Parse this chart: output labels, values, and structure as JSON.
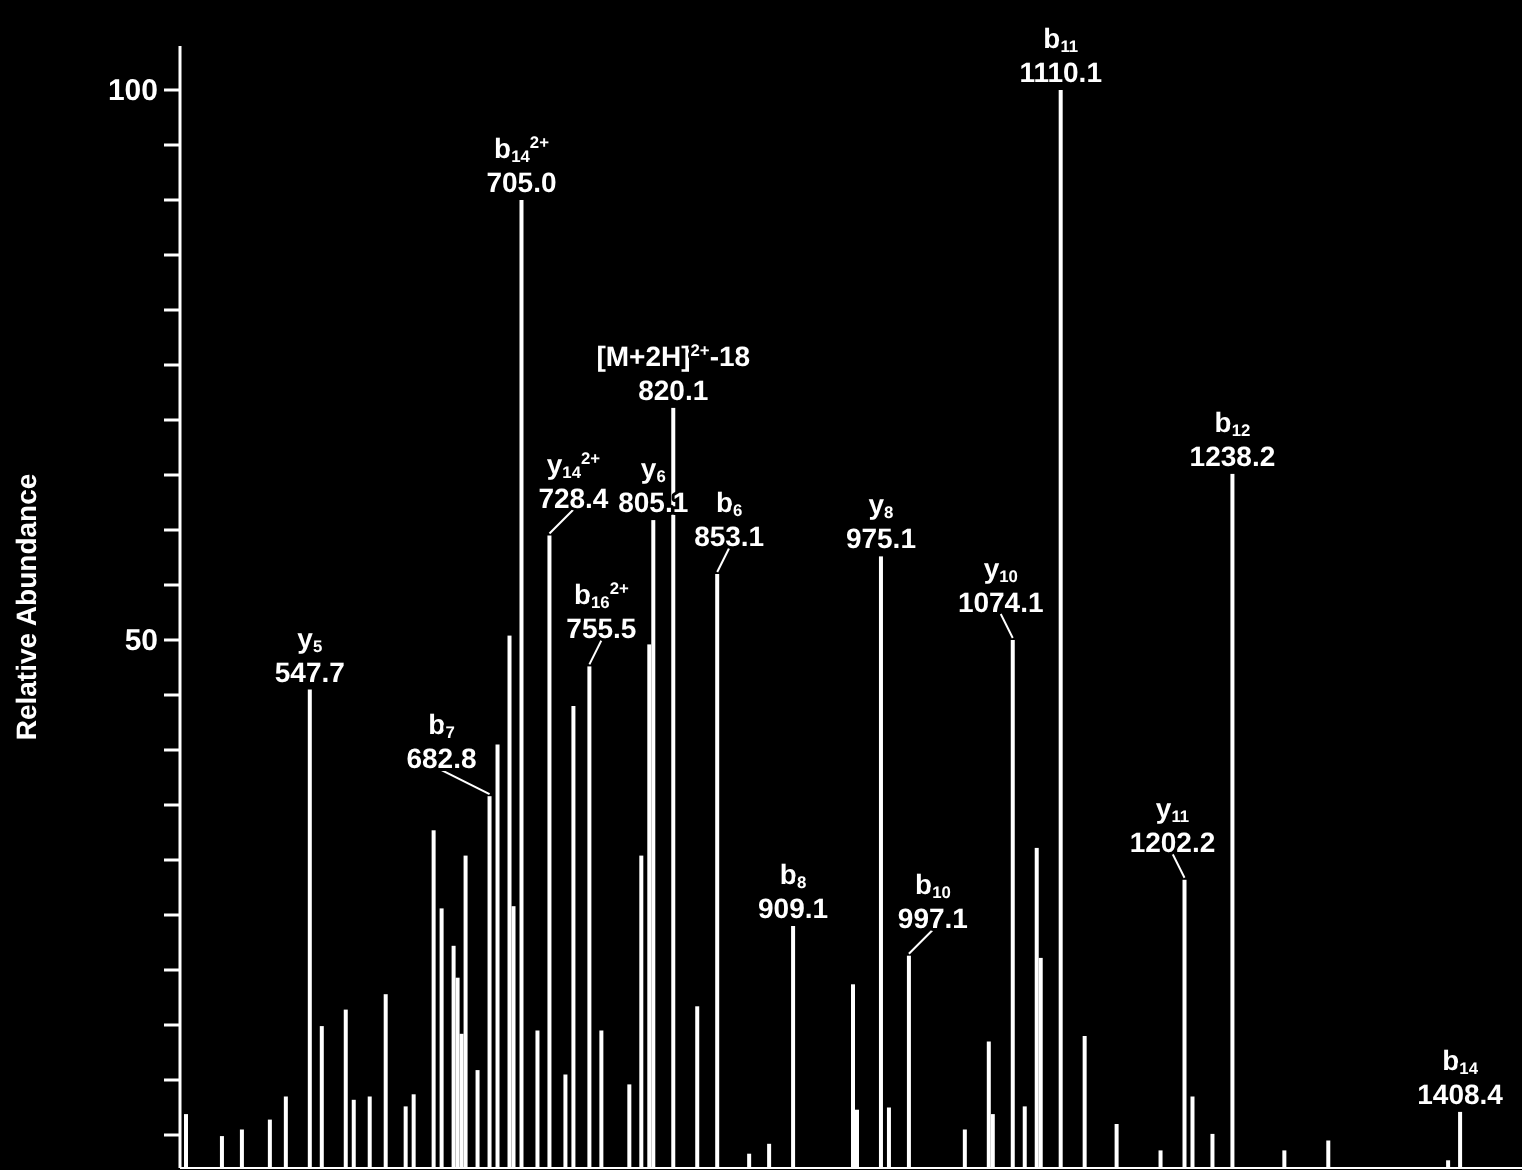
{
  "chart_data": {
    "type": "bar",
    "ylabel": "Relative Abundance",
    "color": "#ffffff",
    "categories": [
      null,
      null,
      null,
      null,
      null,
      null,
      null,
      null,
      null,
      null,
      null,
      null,
      null,
      null,
      null,
      null,
      null,
      null,
      null,
      null,
      null,
      null,
      null,
      null,
      null,
      null,
      null,
      null,
      null,
      null,
      null,
      null,
      null,
      null,
      null,
      null,
      null,
      null,
      null,
      null,
      null,
      null,
      null,
      null,
      null,
      null,
      null,
      null,
      null,
      null,
      null,
      null,
      null,
      null,
      null,
      null,
      null,
      null,
      null,
      null,
      null,
      null,
      null,
      null,
      null,
      null,
      null,
      null,
      null,
      null,
      null,
      null,
      null,
      null,
      null,
      null,
      null,
      null,
      null,
      null,
      null,
      null,
      null,
      null,
      null,
      null,
      null,
      null,
      null,
      null,
      null,
      null,
      null,
      null,
      null,
      null,
      null,
      null,
      null,
      null,
      null,
      null,
      null,
      null,
      null,
      null,
      null,
      null,
      null,
      null,
      null,
      null,
      null,
      null,
      null,
      null,
      null,
      null,
      null,
      null,
      null,
      null,
      null,
      null,
      null,
      null,
      null,
      null,
      null,
      null,
      null,
      null,
      null,
      null,
      null,
      null,
      null,
      null,
      null,
      null,
      null,
      null,
      null,
      null,
      null,
      null,
      null,
      null,
      null,
      null,
      null,
      null,
      null,
      null,
      null,
      null,
      null,
      null,
      null,
      null,
      null,
      null,
      null,
      null,
      null,
      null,
      null,
      null,
      null,
      null,
      null,
      null,
      null,
      null,
      null,
      null,
      null,
      null,
      null,
      null,
      null,
      null,
      null,
      null,
      null,
      null,
      null,
      null,
      null,
      null,
      null,
      null,
      null,
      null,
      null,
      null,
      null,
      null,
      null,
      null,
      null,
      null,
      null,
      null,
      null,
      null,
      null,
      null,
      null,
      null,
      null,
      null,
      null,
      null,
      null,
      null,
      null,
      null,
      null,
      null,
      null,
      null,
      null,
      null,
      null,
      null,
      null,
      null,
      null,
      null,
      null,
      null,
      null,
      null,
      null,
      null,
      null,
      null,
      null,
      null,
      null,
      null,
      null,
      null,
      null,
      null,
      null,
      null,
      null,
      null,
      null,
      null,
      null,
      null,
      null,
      null,
      null,
      null,
      null,
      null,
      null,
      null,
      null,
      null,
      null,
      null,
      null,
      null,
      null,
      null,
      null,
      null,
      null,
      null,
      null,
      null,
      null,
      null,
      null,
      null,
      null,
      null,
      null,
      null,
      null,
      null,
      null,
      null,
      null,
      null,
      null,
      null,
      null,
      null,
      null,
      null,
      null,
      null,
      null,
      null,
      null,
      null,
      null,
      null,
      null,
      null,
      null,
      null,
      null,
      null,
      null,
      null,
      null,
      null,
      null,
      null,
      null,
      null,
      null,
      null,
      null,
      null,
      null,
      null,
      null,
      null,
      null,
      null,
      null,
      null,
      null,
      null,
      null,
      null,
      null,
      null
    ],
    "values": [
      null,
      6.9,
      null,
      null,
      null,
      null,
      null,
      null,
      null,
      null,
      4.9,
      null,
      null,
      null,
      null,
      5.5,
      null,
      null,
      null,
      null,
      null,
      null,
      6.4,
      null,
      null,
      null,
      8.5,
      null,
      null,
      null,
      null,
      null,
      45.5,
      null,
      null,
      14.9,
      null,
      null,
      null,
      null,
      null,
      16.4,
      null,
      8.2,
      null,
      null,
      null,
      8.5,
      null,
      null,
      null,
      17.8,
      null,
      null,
      null,
      null,
      7.6,
      null,
      8.7,
      null,
      null,
      null,
      null,
      32.7,
      null,
      25.6,
      null,
      null,
      22.2,
      19.3,
      14.2,
      30.4,
      null,
      null,
      10.9,
      null,
      null,
      35.8,
      null,
      40.5,
      null,
      null,
      50.4,
      25.8,
      null,
      90,
      null,
      null,
      null,
      14.5,
      null,
      null,
      59.5,
      null,
      null,
      null,
      10.5,
      null,
      44,
      null,
      null,
      null,
      47.6,
      null,
      null,
      14.5,
      null,
      null,
      null,
      null,
      null,
      null,
      9.6,
      null,
      null,
      30.4,
      null,
      49.6,
      60.9,
      null,
      null,
      null,
      null,
      71.1,
      null,
      null,
      null,
      null,
      null,
      16.7,
      null,
      null,
      null,
      null,
      56,
      null,
      null,
      null,
      null,
      null,
      null,
      null,
      3.3,
      null,
      null,
      null,
      null,
      4.2,
      null,
      null,
      null,
      null,
      null,
      24,
      null,
      null,
      null,
      null,
      null,
      null,
      null,
      null,
      null,
      null,
      null,
      null,
      null,
      null,
      18.7,
      7.3,
      null,
      null,
      null,
      null,
      null,
      57.6,
      null,
      7.5,
      null,
      null,
      null,
      null,
      21.3,
      null,
      null,
      null,
      null,
      null,
      null,
      null,
      null,
      null,
      null,
      null,
      null,
      null,
      5.5,
      null,
      null,
      null,
      null,
      null,
      13.5,
      6.9,
      null,
      null,
      null,
      null,
      50,
      null,
      null,
      7.6,
      null,
      null,
      31.1,
      21.1,
      null,
      null,
      null,
      null,
      100,
      null,
      null,
      null,
      null,
      null,
      14,
      null,
      null,
      null,
      null,
      null,
      null,
      null,
      6,
      null,
      null,
      null,
      null,
      null,
      null,
      null,
      null,
      null,
      null,
      3.6,
      null,
      null,
      null,
      null,
      null,
      28.2,
      null,
      8.5,
      null,
      null,
      null,
      null,
      5.1,
      null,
      null,
      null,
      null,
      65.1,
      null,
      null,
      null,
      null,
      null,
      null,
      null,
      null,
      null,
      null,
      null,
      null,
      3.6,
      null,
      null,
      null,
      null,
      null,
      null,
      null,
      null,
      null,
      null,
      4.5,
      null,
      null,
      null,
      null,
      null,
      null,
      null,
      null,
      null,
      null,
      null,
      null,
      null,
      null,
      null,
      null,
      null,
      null,
      null,
      null,
      null,
      null,
      null,
      null,
      null,
      null,
      null,
      null,
      null,
      2.7,
      null,
      null,
      7.1,
      null,
      null,
      null,
      null,
      null,
      null,
      null,
      null,
      null,
      null,
      null,
      null,
      null,
      null,
      null
    ],
    "value_labels": [
      null,
      null,
      null,
      null,
      null,
      null,
      null,
      null,
      null,
      null,
      null,
      null,
      null,
      null,
      null,
      null,
      null,
      null,
      null,
      null,
      null,
      null,
      null,
      null,
      null,
      null,
      null,
      null,
      null,
      null,
      null,
      null,
      "y$_{5}$\n547.7",
      null,
      null,
      null,
      null,
      null,
      null,
      null,
      null,
      null,
      null,
      null,
      null,
      null,
      null,
      null,
      null,
      null,
      null,
      null,
      null,
      null,
      null,
      null,
      null,
      null,
      null,
      null,
      null,
      null,
      null,
      null,
      null,
      null,
      null,
      null,
      null,
      null,
      null,
      null,
      null,
      null,
      null,
      null,
      null,
      "b$_{7}$\n682.8",
      null,
      null,
      null,
      null,
      null,
      null,
      null,
      "b$_{14}$$^{2+}$\n705.0",
      null,
      null,
      null,
      null,
      null,
      null,
      "y$_{14}$$^{2+}$\n728.4",
      null,
      null,
      null,
      null,
      null,
      null,
      null,
      null,
      null,
      "b$_{16}$$^{2+}$\n755.5",
      null,
      null,
      null,
      null,
      null,
      null,
      null,
      null,
      null,
      null,
      null,
      null,
      null,
      null,
      null,
      "y$_{6}$\n805.1",
      null,
      null,
      null,
      null,
      "[M+2H]$^{2+}$-18\n820.1",
      null,
      null,
      null,
      null,
      null,
      null,
      null,
      null,
      null,
      null,
      "b$_{6}$\n853.1",
      null,
      null,
      null,
      null,
      null,
      null,
      null,
      null,
      null,
      null,
      null,
      null,
      null,
      null,
      null,
      null,
      null,
      null,
      "b$_{8}$\n909.1",
      null,
      null,
      null,
      null,
      null,
      null,
      null,
      null,
      null,
      null,
      null,
      null,
      null,
      null,
      null,
      null,
      null,
      null,
      null,
      null,
      null,
      "y$_{8}$\n975.1",
      null,
      null,
      null,
      null,
      null,
      null,
      "b$_{10}$\n997.1",
      null,
      null,
      null,
      null,
      null,
      null,
      null,
      null,
      null,
      null,
      null,
      null,
      null,
      null,
      null,
      null,
      null,
      null,
      null,
      null,
      null,
      null,
      null,
      null,
      null,
      "y$_{10}$\n1074.1",
      null,
      null,
      null,
      null,
      null,
      null,
      null,
      null,
      null,
      null,
      null,
      "b$_{11}$\n1110.1",
      null,
      null,
      null,
      null,
      null,
      null,
      null,
      null,
      null,
      null,
      null,
      null,
      null,
      null,
      null,
      null,
      null,
      null,
      null,
      null,
      null,
      null,
      null,
      null,
      null,
      null,
      null,
      null,
      null,
      null,
      "y$_{11}$\n1202.2",
      null,
      null,
      null,
      null,
      null,
      null,
      null,
      null,
      null,
      null,
      null,
      "b$_{12}$\n1238.2",
      null,
      null,
      null,
      null,
      null,
      null,
      null,
      null,
      null,
      null,
      null,
      null,
      null,
      null,
      null,
      null,
      null,
      null,
      null,
      null,
      null,
      null,
      null,
      null,
      null,
      null,
      null,
      null,
      null,
      null,
      null,
      null,
      null,
      null,
      null,
      null,
      null,
      null,
      null,
      null,
      null,
      null,
      null,
      null,
      null,
      null,
      null,
      null,
      null,
      null,
      null,
      null,
      null,
      null,
      null,
      null,
      "b$_{14}$\n1408.4",
      null,
      null,
      null,
      null,
      null,
      null,
      null,
      null,
      null,
      null,
      null,
      null,
      null,
      null,
      null
    ],
    "ylim": [
      2,
      104
    ],
    "yticks": [
      {
        "value": 5,
        "label": null
      },
      {
        "value": 10,
        "label": null
      },
      {
        "value": 15,
        "label": null
      },
      {
        "value": 20,
        "label": null
      },
      {
        "value": 25,
        "label": null
      },
      {
        "value": 30,
        "label": null
      },
      {
        "value": 35,
        "label": null
      },
      {
        "value": 40,
        "label": null
      },
      {
        "value": 45,
        "label": null
      },
      50,
      {
        "value": 55,
        "label": null
      },
      {
        "value": 60,
        "label": null
      },
      {
        "value": 65,
        "label": null
      },
      {
        "value": 70,
        "label": null
      },
      {
        "value": 75,
        "label": null
      },
      {
        "value": 80,
        "label": null
      },
      {
        "value": 85,
        "label": null
      },
      {
        "value": 90,
        "label": null
      },
      {
        "value": 95,
        "label": null
      },
      100
    ],
    "tick_labels": "y"
  }
}
